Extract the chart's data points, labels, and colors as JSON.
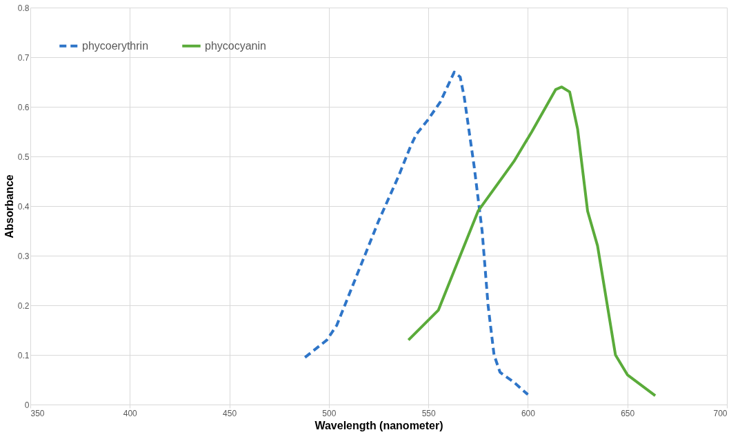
{
  "chart_data": {
    "type": "line",
    "xlabel": "Wavelength (nanometer)",
    "ylabel": "Absorbance",
    "xlim": [
      350,
      700
    ],
    "xticks": [
      350,
      400,
      450,
      500,
      550,
      600,
      650,
      700
    ],
    "ylim": [
      0,
      0.8
    ],
    "yticks": [
      0,
      0.1,
      0.2,
      0.3,
      0.4,
      0.5,
      0.6,
      0.7,
      0.8
    ],
    "grid": true,
    "legend": "top left",
    "series": [
      {
        "name": "phycoerythrin",
        "color": "#2e75c8",
        "line_style": "dashed",
        "x": [
          488,
          499,
          504,
          515,
          525,
          535,
          541,
          544,
          550,
          556,
          563,
          566,
          568,
          573,
          577,
          580,
          583,
          586,
          593,
          600
        ],
        "values": [
          0.095,
          0.13,
          0.16,
          0.27,
          0.37,
          0.46,
          0.52,
          0.545,
          0.575,
          0.61,
          0.67,
          0.66,
          0.62,
          0.48,
          0.35,
          0.2,
          0.1,
          0.065,
          0.045,
          0.02
        ]
      },
      {
        "name": "phycocyanin",
        "color": "#5aab3a",
        "line_style": "solid",
        "x": [
          540,
          555,
          563,
          575,
          593,
          602,
          614,
          617,
          621,
          625,
          630,
          635,
          644,
          650,
          664
        ],
        "values": [
          0.13,
          0.19,
          0.27,
          0.39,
          0.49,
          0.55,
          0.635,
          0.64,
          0.63,
          0.555,
          0.39,
          0.32,
          0.1,
          0.06,
          0.018
        ]
      }
    ]
  }
}
